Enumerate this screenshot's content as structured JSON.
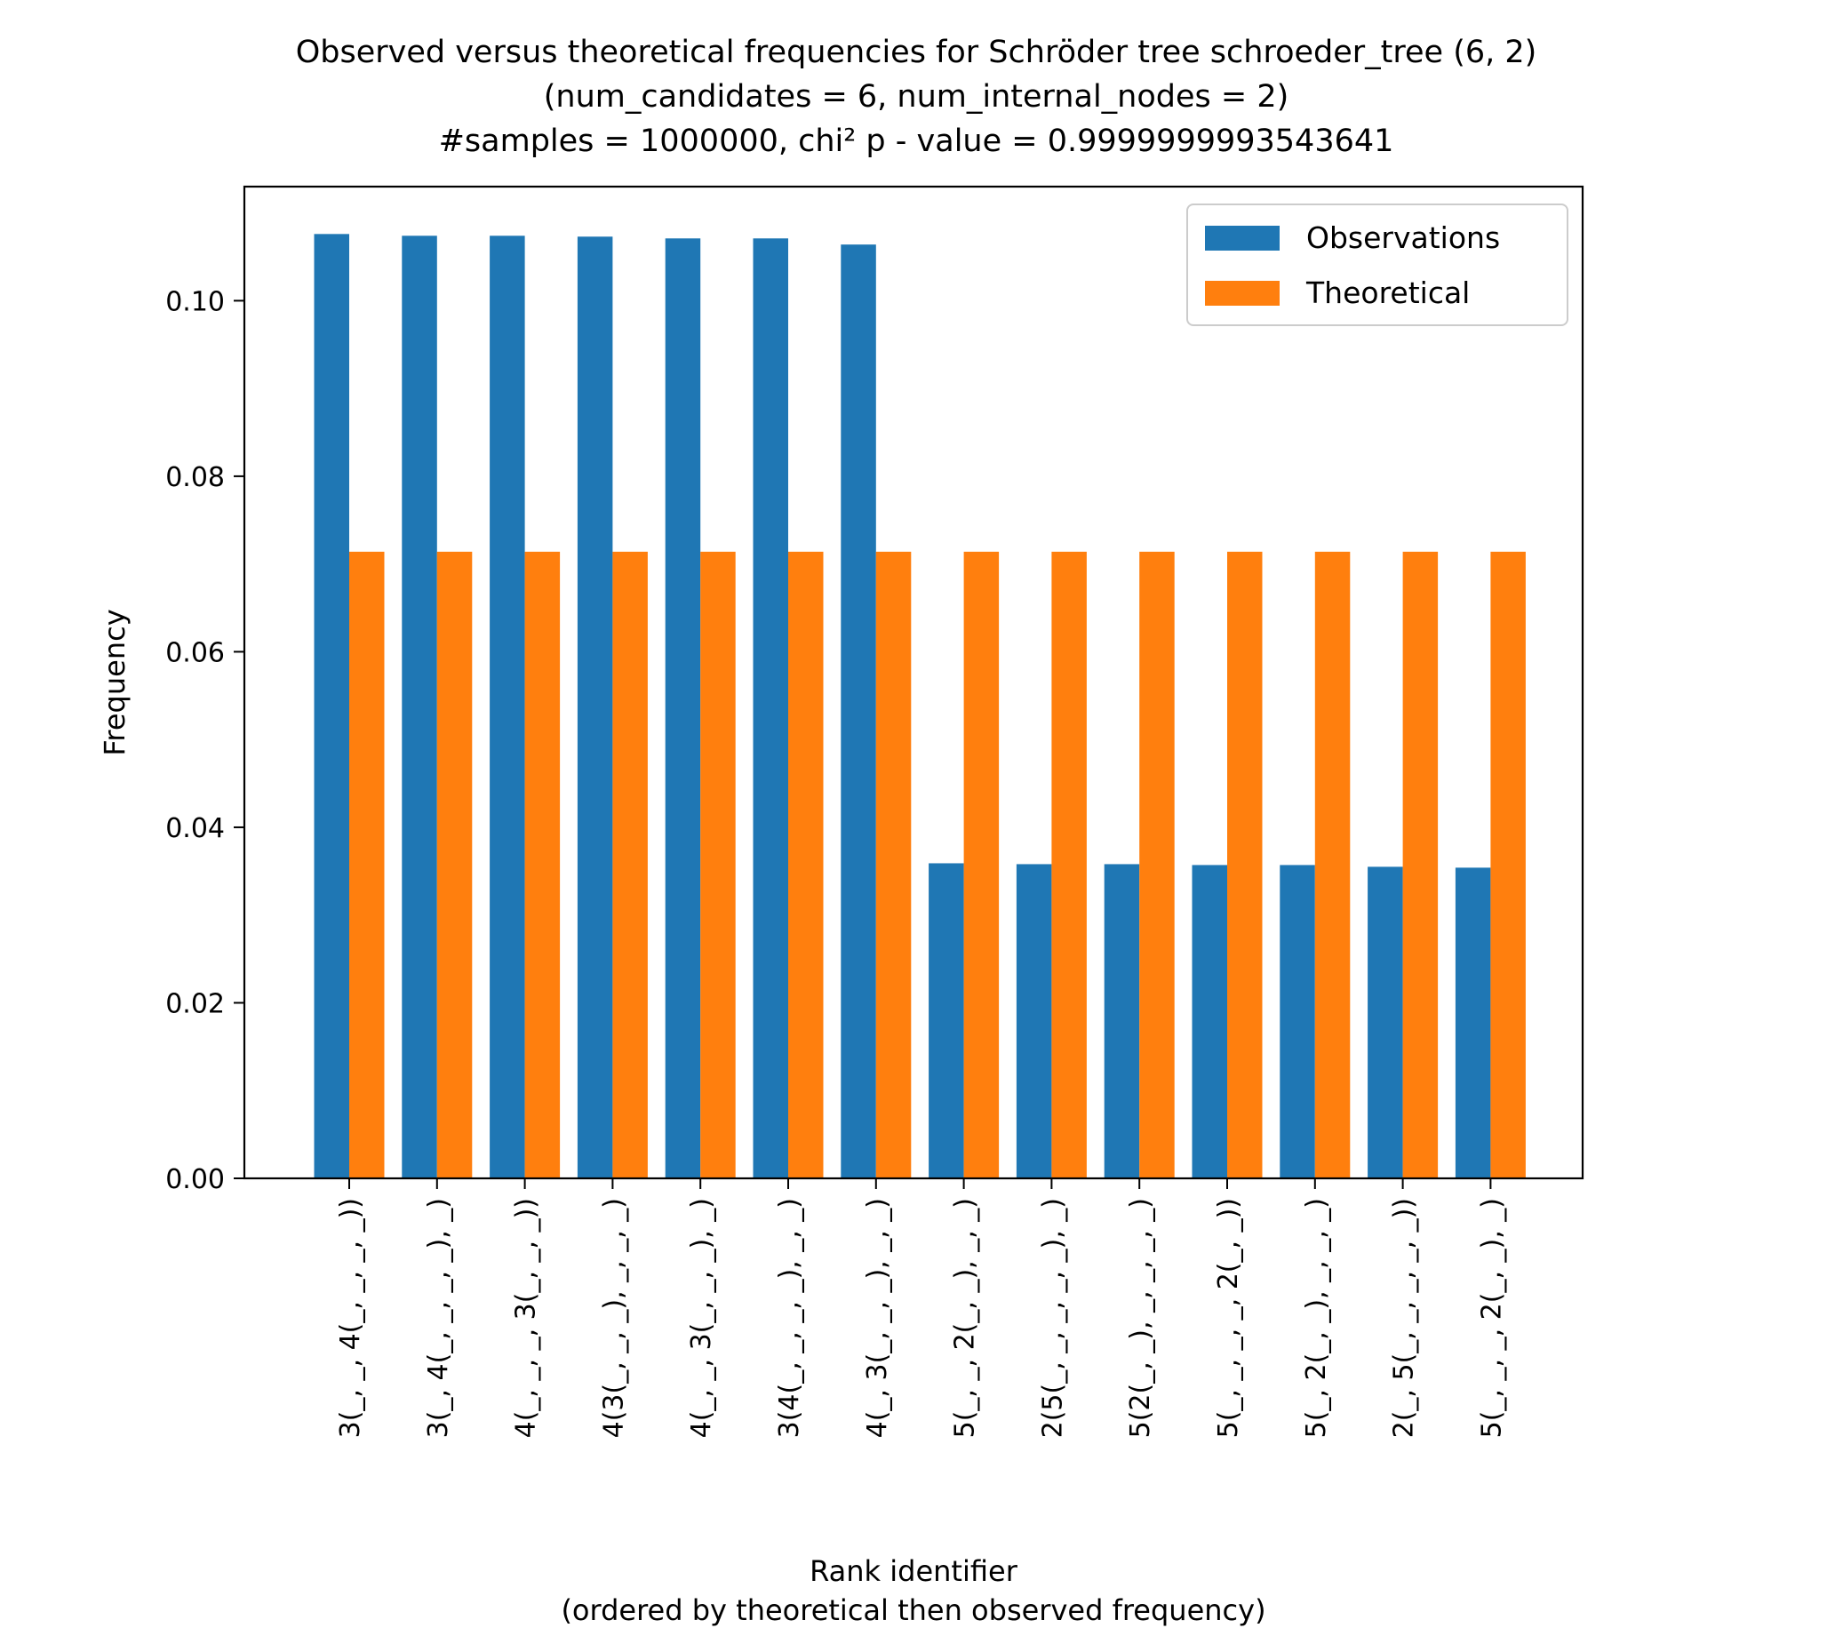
{
  "chart_data": {
    "type": "bar",
    "title": [
      "Observed versus theoretical frequencies for Schröder tree schroeder_tree (6, 2)",
      "(num_candidates = 6, num_internal_nodes = 2)",
      "#samples = 1000000, chi² p - value = 0.9999999993543641"
    ],
    "xlabel": [
      "Rank identifier",
      "(ordered by theoretical then observed frequency)"
    ],
    "ylabel": "Frequency",
    "ylim": [
      0,
      0.113
    ],
    "yticks": [
      0.0,
      0.02,
      0.04,
      0.06,
      0.08,
      0.1
    ],
    "ytick_labels": [
      "0.00",
      "0.02",
      "0.04",
      "0.06",
      "0.08",
      "0.10"
    ],
    "categories": [
      "3(_, _, 4(_, _, _, _))",
      "3(_, 4(_, _, _, _), _)",
      "4(_, _, _, 3(_, _, _))",
      "4(3(_, _, _), _, _, _)",
      "4(_, _, 3(_, _, _), _)",
      "3(4(_, _, _, _), _, _)",
      "4(_, 3(_, _, _), _, _)",
      "5(_, _, 2(_, _), _, _)",
      "2(5(_, _, _, _, _), _)",
      "5(2(_, _), _, _, _, _)",
      "5(_, _, _, _, 2(_, _))",
      "5(_, 2(_, _), _, _, _)",
      "2(_, 5(_, _, _, _, _))",
      "5(_, _, _, 2(_, _), _)"
    ],
    "series": [
      {
        "name": "Observations",
        "color": "#1f77b4",
        "values": [
          0.1076,
          0.1074,
          0.1074,
          0.1073,
          0.1071,
          0.1071,
          0.1064,
          0.0359,
          0.0358,
          0.0358,
          0.0357,
          0.0357,
          0.0355,
          0.0354
        ]
      },
      {
        "name": "Theoretical",
        "color": "#ff7f0e",
        "values": [
          0.0714,
          0.0714,
          0.0714,
          0.0714,
          0.0714,
          0.0714,
          0.0714,
          0.0714,
          0.0714,
          0.0714,
          0.0714,
          0.0714,
          0.0714,
          0.0714
        ]
      }
    ],
    "legend_position": "top-right",
    "grid": false
  }
}
